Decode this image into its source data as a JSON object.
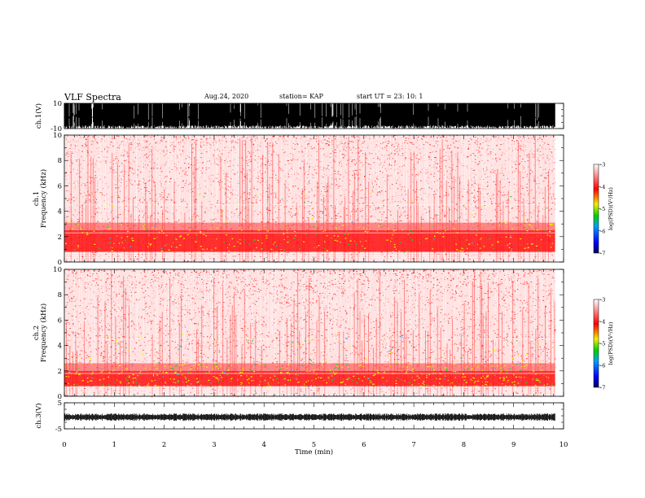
{
  "header": {
    "title": "VLF Spectra",
    "date": "Aug.24, 2020",
    "station": "station= KAP",
    "start_ut": "start  UT  =   23: 10: 1"
  },
  "chart_data": [
    {
      "type": "line",
      "panel": "ch1-waveform",
      "ylabel": "ch.1(V)",
      "ylim": [
        -10,
        10
      ],
      "y_ticks": [
        10,
        -10
      ],
      "xlim": [
        0,
        10
      ],
      "x_ticks": [
        0,
        1,
        2,
        3,
        4,
        5,
        6,
        7,
        8,
        9,
        10
      ],
      "data_extent_x": [
        0,
        9.83
      ],
      "note_style": "dense saturated waveform between -10 and 10"
    },
    {
      "type": "heatmap",
      "panel": "ch1-spectrogram",
      "ylabel": "ch.1\nFrequency  (kHz)",
      "ylim": [
        0,
        10
      ],
      "y_ticks": [
        0,
        2,
        4,
        6,
        8,
        10
      ],
      "xlim": [
        0,
        10
      ],
      "data_extent_x": [
        0,
        9.83
      ],
      "colorbar": {
        "label": "log(PSD)(V²/Hz)",
        "ticks": [
          -3,
          -4,
          -5,
          -6,
          -7
        ],
        "range": [
          -7,
          -3
        ]
      },
      "dominant_band_khz": [
        0.8,
        2.5
      ]
    },
    {
      "type": "heatmap",
      "panel": "ch2-spectrogram",
      "ylabel": "ch.2\nFrequency  (kHz)",
      "ylim": [
        0,
        10
      ],
      "y_ticks": [
        0,
        2,
        4,
        6,
        8,
        10
      ],
      "xlim": [
        0,
        10
      ],
      "data_extent_x": [
        0,
        9.83
      ],
      "colorbar": {
        "label": "log(PSD)(V²/Hz)",
        "ticks": [
          -3,
          -4,
          -5,
          -6,
          -7
        ],
        "range": [
          -7,
          -3
        ]
      },
      "dominant_band_khz": [
        0.8,
        2.0
      ]
    },
    {
      "type": "line",
      "panel": "ch3-waveform",
      "ylabel": "ch.3(V)",
      "ylim": [
        -5,
        5
      ],
      "y_ticks": [
        5,
        -5
      ],
      "xlim": [
        0,
        10
      ],
      "x_ticks": [
        0,
        1,
        2,
        3,
        4,
        5,
        6,
        7,
        8,
        9,
        10
      ],
      "xlabel": "Time  (min)",
      "data_extent_x": [
        0,
        9.83
      ],
      "mean_value": -0.5
    }
  ],
  "colors": {
    "axis": "#000000",
    "spec_low": "#0000a0",
    "spec_mid": "#00c000",
    "spec_yellow": "#f0f000",
    "spec_high": "#ff2020",
    "background": "#ffffff"
  }
}
